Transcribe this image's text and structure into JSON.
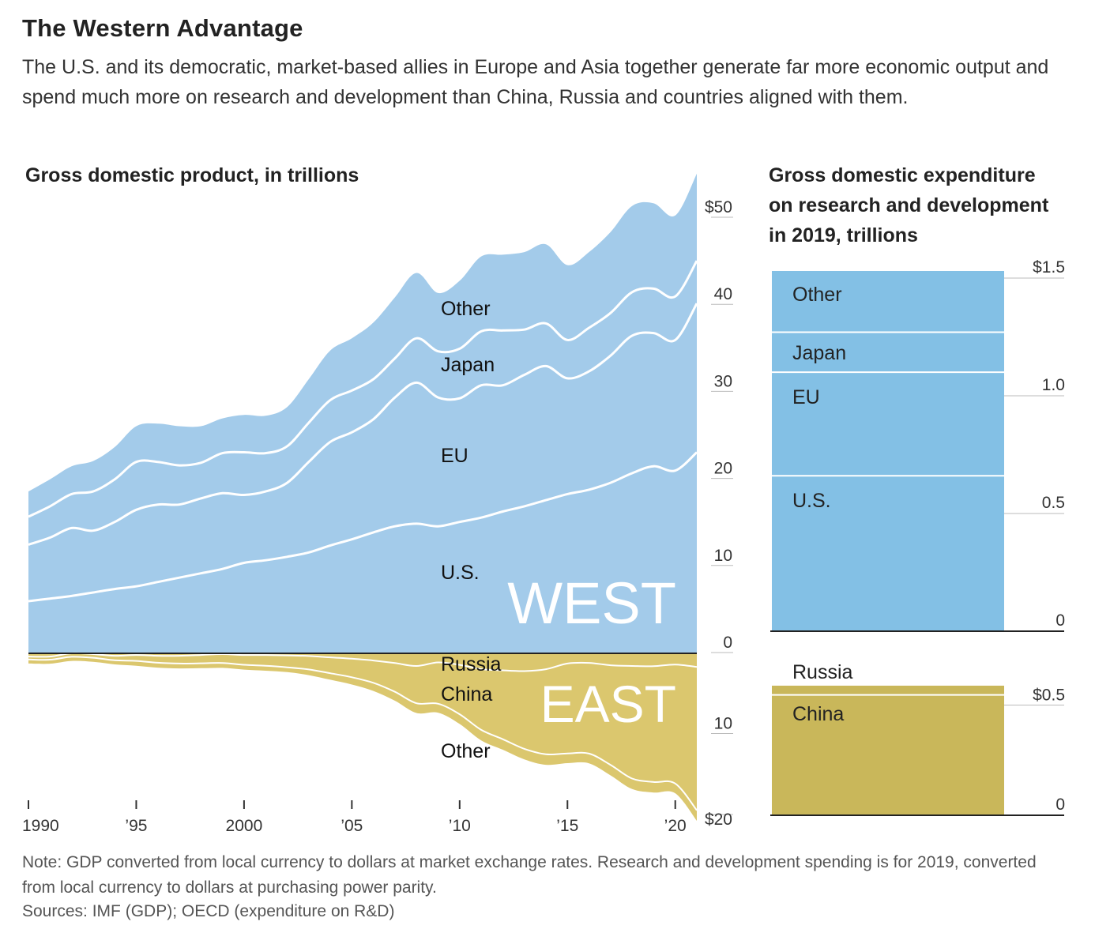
{
  "header": {
    "title": "The Western Advantage",
    "subtitle": "The U.S. and its democratic, market-based allies in Europe and Asia together generate far more economic output and spend much more on research and development than China, Russia and countries aligned with them."
  },
  "footer": {
    "note": "Note: GDP converted from local currency to dollars at market exchange rates. Research and development spending is for 2019, converted from local currency to dollars at purchasing power parity.",
    "sources": "Sources: IMF (GDP); OECD (expenditure on R&D)"
  },
  "colors": {
    "west": "#a3cbea",
    "east": "#dbc76e",
    "west_bar": "#83c0e5",
    "east_bar": "#c9b75a",
    "divider": "#ffffff"
  },
  "chart_data": [
    {
      "type": "area",
      "title": "Gross domestic product, in trillions",
      "group_labels": [
        "WEST",
        "EAST"
      ],
      "x_ticks": [
        "1990",
        "’95",
        "2000",
        "’05",
        "’10",
        "’15",
        "’20"
      ],
      "x_tick_values": [
        1990,
        1995,
        2000,
        2005,
        2010,
        2015,
        2020
      ],
      "y_ticks_west": [
        "0",
        "10",
        "20",
        "30",
        "40",
        "$50"
      ],
      "y_tick_values_west": [
        0,
        10,
        20,
        30,
        40,
        50
      ],
      "y_ticks_east": [
        "10",
        "$20"
      ],
      "y_tick_values_east": [
        10,
        20
      ],
      "ylim_west": [
        0,
        55
      ],
      "ylim_east": [
        0,
        20
      ],
      "x": [
        1990,
        1991,
        1992,
        1993,
        1994,
        1995,
        1996,
        1997,
        1998,
        1999,
        2000,
        2001,
        2002,
        2003,
        2004,
        2005,
        2006,
        2007,
        2008,
        2009,
        2010,
        2011,
        2012,
        2013,
        2014,
        2015,
        2016,
        2017,
        2018,
        2019,
        2020,
        2021
      ],
      "west_series": [
        {
          "name": "U.S.",
          "values": [
            5.9,
            6.2,
            6.5,
            6.9,
            7.3,
            7.6,
            8.1,
            8.6,
            9.1,
            9.6,
            10.3,
            10.6,
            11.0,
            11.5,
            12.3,
            13.0,
            13.8,
            14.5,
            14.8,
            14.5,
            15.0,
            15.5,
            16.2,
            16.8,
            17.5,
            18.2,
            18.7,
            19.5,
            20.6,
            21.4,
            20.9,
            23.0
          ]
        },
        {
          "name": "EU",
          "values": [
            6.5,
            7.0,
            7.8,
            7.1,
            7.7,
            8.8,
            8.9,
            8.4,
            8.6,
            8.7,
            7.8,
            7.9,
            8.5,
            10.4,
            11.9,
            12.3,
            13.0,
            14.8,
            16.2,
            14.8,
            14.2,
            15.2,
            14.5,
            15.1,
            15.4,
            13.3,
            13.6,
            14.6,
            15.8,
            15.3,
            15.0,
            17.1
          ]
        },
        {
          "name": "Japan",
          "values": [
            3.2,
            3.6,
            3.9,
            4.5,
            4.9,
            5.5,
            4.9,
            4.5,
            4.1,
            4.6,
            4.9,
            4.4,
            4.2,
            4.5,
            4.8,
            4.8,
            4.6,
            4.5,
            5.1,
            5.3,
            5.7,
            6.2,
            6.3,
            5.2,
            4.9,
            4.4,
            5.0,
            4.9,
            5.0,
            5.1,
            5.0,
            4.9
          ]
        },
        {
          "name": "Other",
          "values": [
            2.9,
            3.1,
            3.2,
            3.5,
            3.7,
            4.1,
            4.4,
            4.5,
            4.2,
            4.0,
            4.3,
            4.3,
            4.5,
            5.0,
            5.7,
            6.0,
            6.5,
            7.0,
            7.5,
            6.7,
            7.8,
            8.6,
            8.7,
            8.9,
            9.1,
            8.6,
            8.7,
            9.3,
            9.9,
            9.8,
            9.3,
            10.0
          ]
        }
      ],
      "east_series": [
        {
          "name": "Russia",
          "values": [
            0.5,
            0.5,
            0.1,
            0.2,
            0.4,
            0.3,
            0.4,
            0.4,
            0.3,
            0.2,
            0.3,
            0.3,
            0.35,
            0.43,
            0.6,
            0.76,
            0.99,
            1.3,
            1.66,
            1.22,
            1.52,
            2.05,
            2.2,
            2.29,
            2.06,
            1.36,
            1.28,
            1.57,
            1.66,
            1.69,
            1.48,
            1.78
          ]
        },
        {
          "name": "China",
          "values": [
            0.36,
            0.38,
            0.43,
            0.44,
            0.56,
            0.73,
            0.86,
            0.96,
            1.03,
            1.09,
            1.21,
            1.34,
            1.47,
            1.66,
            1.96,
            2.29,
            2.75,
            3.55,
            4.6,
            5.1,
            6.1,
            7.5,
            8.5,
            9.6,
            10.5,
            11.1,
            11.2,
            12.3,
            13.9,
            14.3,
            14.7,
            17.7
          ]
        },
        {
          "name": "Other",
          "values": [
            0.5,
            0.5,
            0.5,
            0.5,
            0.5,
            0.6,
            0.6,
            0.6,
            0.6,
            0.6,
            0.6,
            0.6,
            0.6,
            0.7,
            0.8,
            0.9,
            1.0,
            1.1,
            1.2,
            1.1,
            1.2,
            1.3,
            1.3,
            1.3,
            1.3,
            1.2,
            1.2,
            1.3,
            1.3,
            1.3,
            1.2,
            1.3
          ]
        }
      ]
    },
    {
      "type": "bar",
      "title": "Gross domestic expenditure on research and development in 2019, trillions",
      "west": {
        "y_ticks": [
          "0",
          "0.5",
          "1.0",
          "$1.5"
        ],
        "y_tick_values": [
          0,
          0.5,
          1.0,
          1.5
        ],
        "ylim": [
          0,
          1.53
        ],
        "segments": [
          {
            "name": "U.S.",
            "value": 0.66
          },
          {
            "name": "EU",
            "value": 0.44
          },
          {
            "name": "Japan",
            "value": 0.17
          },
          {
            "name": "Other",
            "value": 0.26
          }
        ]
      },
      "east": {
        "y_ticks": [
          "0",
          "$0.5"
        ],
        "y_tick_values": [
          0,
          0.5
        ],
        "ylim": [
          0,
          0.57
        ],
        "segments": [
          {
            "name": "China",
            "value": 0.52
          },
          {
            "name": "Russia",
            "value": 0.04
          }
        ]
      }
    }
  ]
}
